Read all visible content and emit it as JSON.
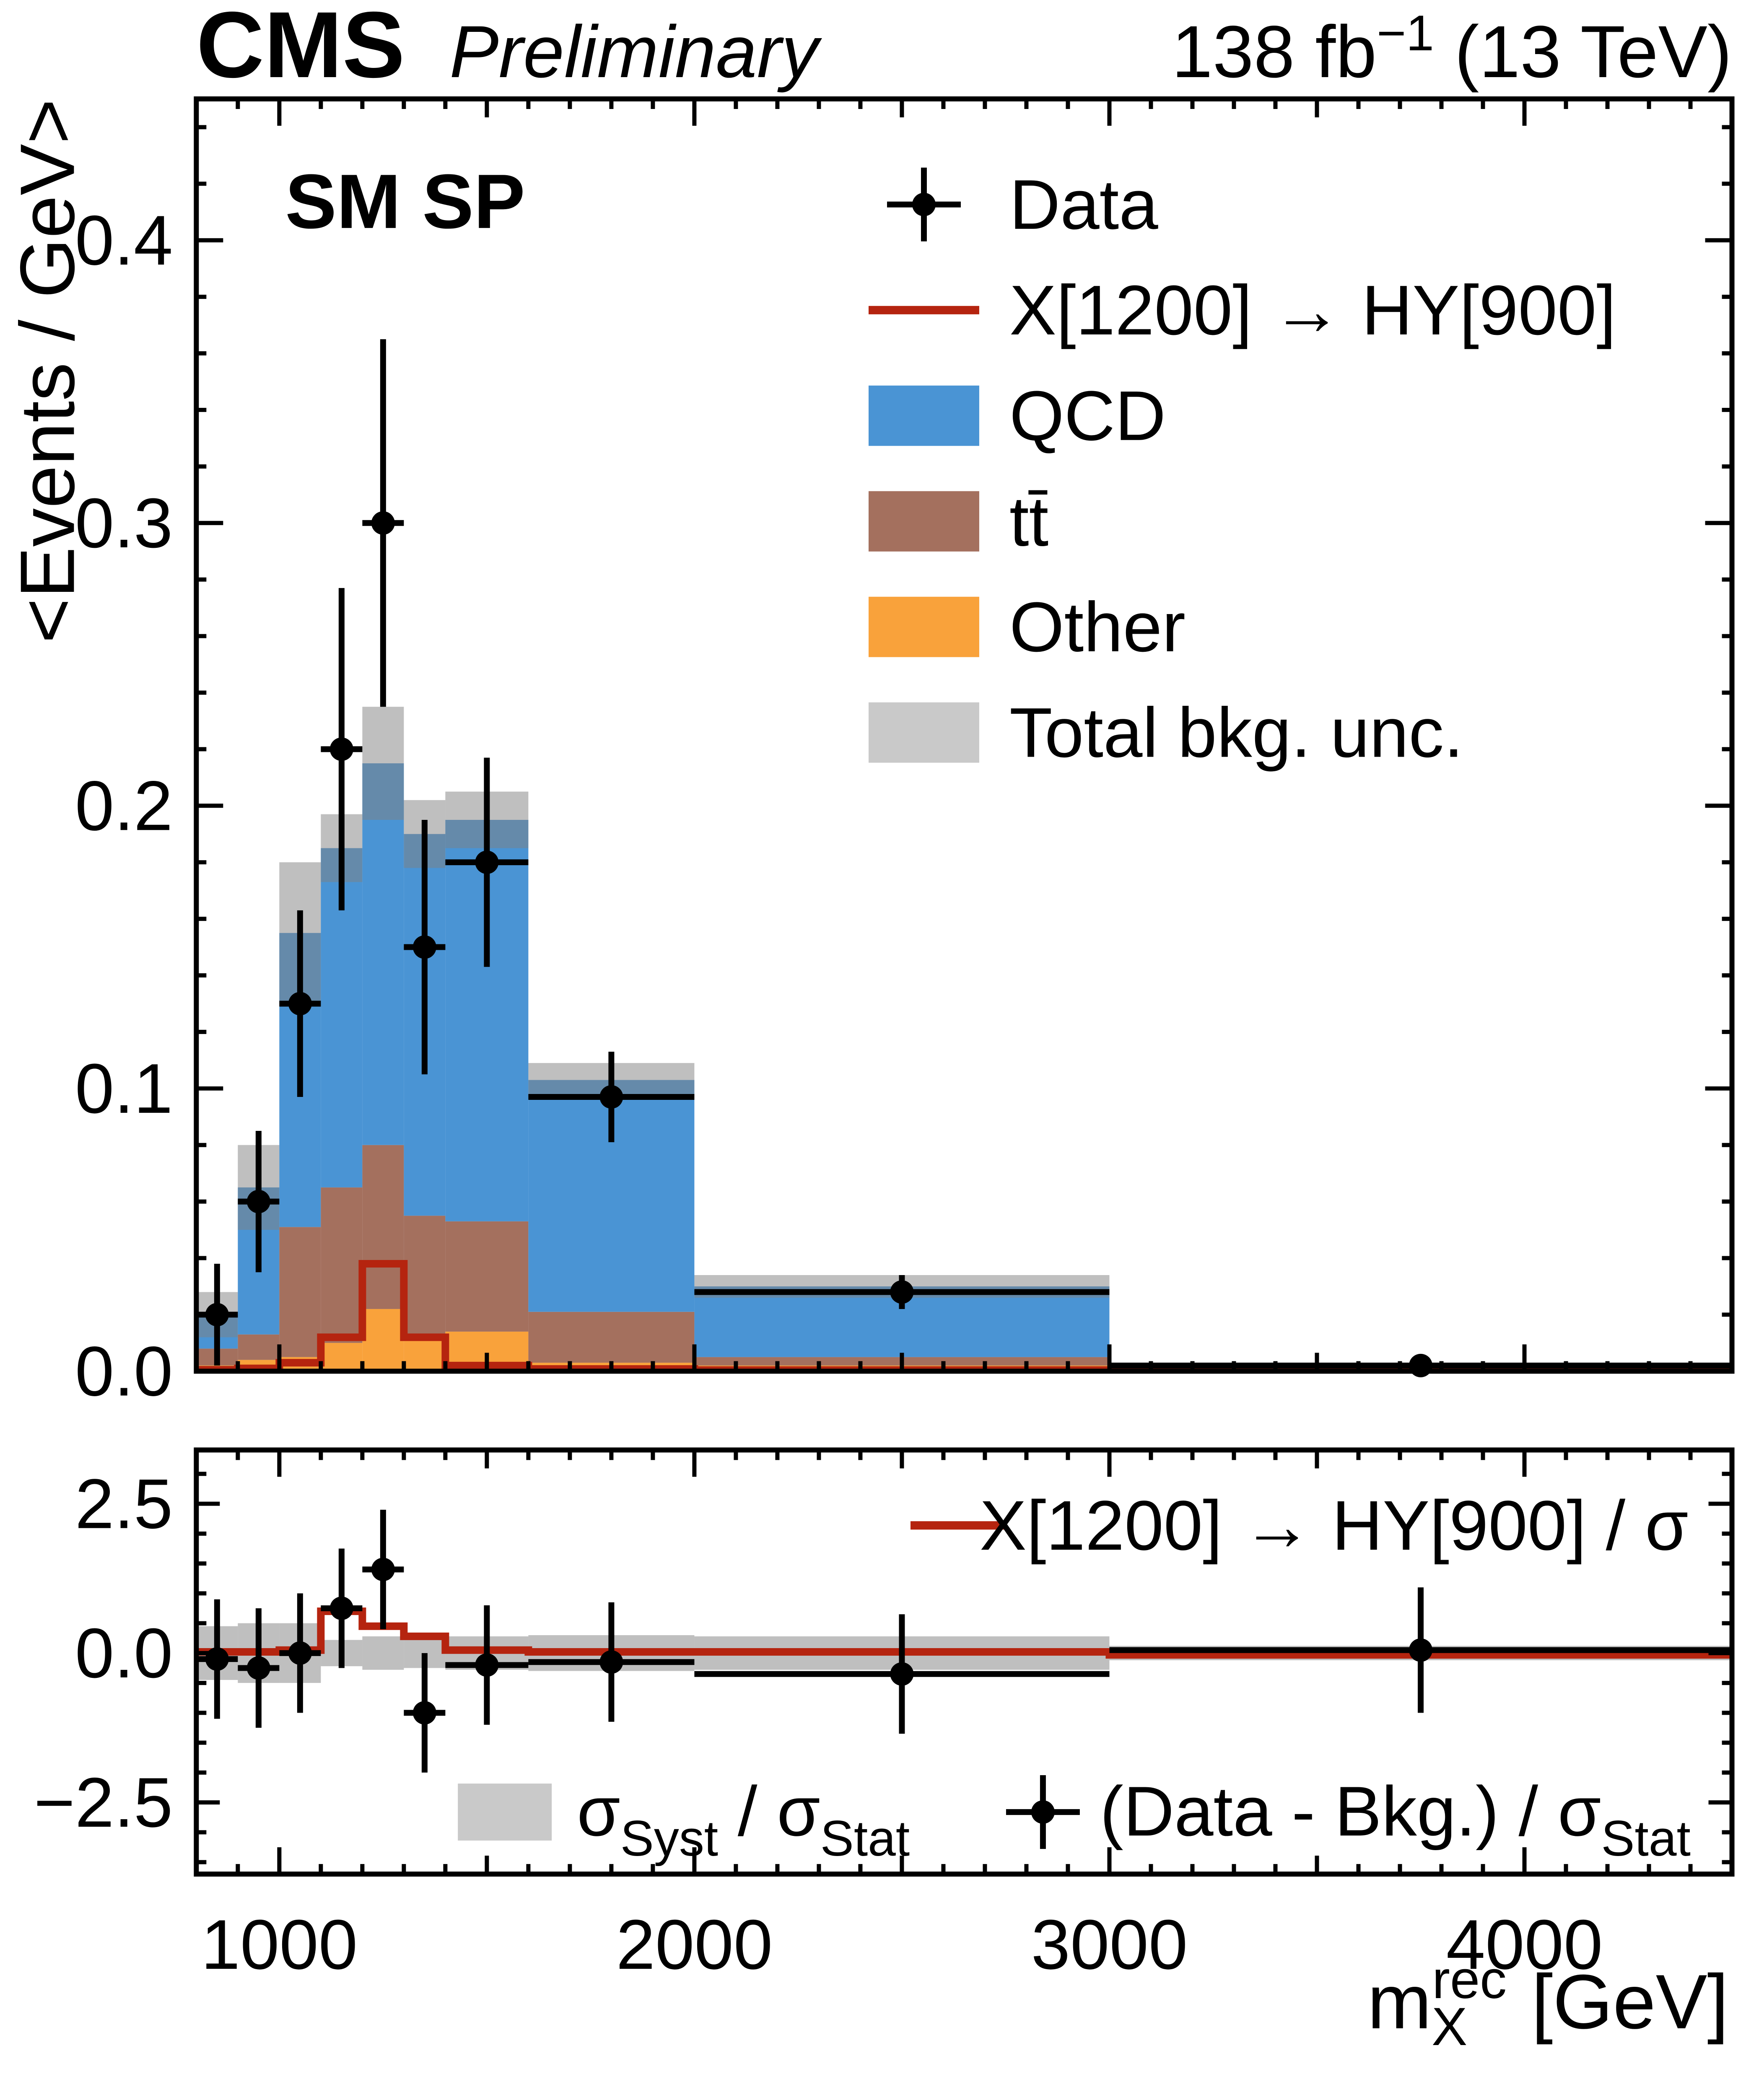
{
  "page": {
    "brand": "CMS",
    "brand_style": "Preliminary",
    "lumi_frag1": "138 fb",
    "lumi_frag2": "−1",
    "lumi_frag3": " (13 TeV)",
    "panel_label": "SM SP"
  },
  "axes": {
    "y_title": "<Events / GeV>",
    "x_title_base": "m",
    "x_title_sub": "X",
    "x_title_sup": "rec",
    "x_title_unit": " [GeV]"
  },
  "legend": {
    "entries": [
      {
        "label": "Data",
        "type": "marker"
      },
      {
        "label": "X[1200] → HY[900]",
        "type": "line",
        "color": "#B5240F"
      },
      {
        "label": "QCD",
        "type": "box",
        "color": "#4A94D4"
      },
      {
        "label": "tt̄",
        "type": "box",
        "color": "#A4705E"
      },
      {
        "label": "Other",
        "type": "box",
        "color": "#F9A23B"
      },
      {
        "label": "Total bkg. unc.",
        "type": "box",
        "color": "#C9C9C9"
      }
    ]
  },
  "ratio_legend": {
    "signal_label": "X[1200] → HY[900] / σ",
    "band_frag1": "σ",
    "band_frag2": "Syst",
    "band_frag3": " / σ",
    "band_frag4": "Stat",
    "points_frag1": "(Data - Bkg.) / σ",
    "points_frag2": "Stat"
  },
  "chart_data": [
    {
      "type": "bar",
      "name": "main-stacked-histogram",
      "stacked": true,
      "title": "SM SP",
      "xlabel": "m_X^rec [GeV]",
      "ylabel": "<Events / GeV>",
      "xlim": [
        800,
        4500
      ],
      "ylim": [
        0,
        0.45
      ],
      "grid": false,
      "legend_position": "upper right",
      "bin_edges": [
        800,
        900,
        1000,
        1100,
        1200,
        1300,
        1400,
        1600,
        2000,
        3000,
        4500
      ],
      "series": [
        {
          "name": "Other",
          "color": "#F9A23B",
          "values": [
            0.002,
            0.004,
            0.005,
            0.01,
            0.022,
            0.011,
            0.014,
            0.003,
            0.002,
            0.0005
          ]
        },
        {
          "name": "tt̄",
          "color": "#A4705E",
          "values": [
            0.006,
            0.009,
            0.046,
            0.055,
            0.058,
            0.044,
            0.039,
            0.018,
            0.003,
            0.0005
          ]
        },
        {
          "name": "QCD",
          "color": "#4A94D4",
          "values": [
            0.012,
            0.052,
            0.104,
            0.12,
            0.135,
            0.135,
            0.142,
            0.082,
            0.025,
            0.001
          ]
        }
      ],
      "total_bkg_unc": [
        0.008,
        0.015,
        0.025,
        0.012,
        0.02,
        0.012,
        0.01,
        0.006,
        0.004,
        0.001
      ],
      "unc_color": "#7F7F7F",
      "unc_opacity": 0.5,
      "signal": {
        "name": "X[1200] → HY[900]",
        "color": "#B5240F",
        "values": [
          0.0005,
          0.001,
          0.003,
          0.012,
          0.038,
          0.012,
          0.002,
          0.0008,
          0.0004,
          0.0002
        ]
      },
      "data": {
        "x": [
          850,
          950,
          1050,
          1150,
          1250,
          1350,
          1500,
          1800,
          2500,
          3750
        ],
        "y": [
          0.02,
          0.06,
          0.13,
          0.22,
          0.3,
          0.15,
          0.18,
          0.097,
          0.028,
          0.002
        ],
        "yerr": [
          0.018,
          0.025,
          0.033,
          0.057,
          0.065,
          0.045,
          0.037,
          0.016,
          0.006,
          0.002
        ],
        "xerr": [
          50,
          50,
          50,
          50,
          50,
          50,
          100,
          200,
          500,
          750
        ]
      },
      "x_ticks": [
        {
          "v": 1000,
          "label": "1000"
        },
        {
          "v": 2000,
          "label": "2000"
        },
        {
          "v": 3000,
          "label": "3000"
        },
        {
          "v": 4000,
          "label": "4000"
        }
      ],
      "y_ticks": [
        {
          "v": 0.0,
          "label": "0.0"
        },
        {
          "v": 0.1,
          "label": "0.1"
        },
        {
          "v": 0.2,
          "label": "0.2"
        },
        {
          "v": 0.3,
          "label": "0.3"
        },
        {
          "v": 0.4,
          "label": "0.4"
        }
      ]
    },
    {
      "type": "scatter",
      "name": "ratio-pull-panel",
      "ylabel": "",
      "ylim": [
        -3.7,
        3.4
      ],
      "band_halfwidth": [
        0.45,
        0.5,
        0.5,
        0.22,
        0.28,
        0.25,
        0.28,
        0.3,
        0.28,
        0.12
      ],
      "signal_over_sigma": [
        0.02,
        0.02,
        0.05,
        0.7,
        0.45,
        0.28,
        0.05,
        0.02,
        0.02,
        -0.03
      ],
      "points": {
        "x": [
          850,
          950,
          1050,
          1150,
          1250,
          1350,
          1500,
          1800,
          2500,
          3750
        ],
        "y": [
          -0.1,
          -0.25,
          0.0,
          0.75,
          1.4,
          -1.0,
          -0.2,
          -0.15,
          -0.35,
          0.05
        ],
        "yerr": [
          1.0,
          1.0,
          1.0,
          1.0,
          1.0,
          1.0,
          1.0,
          1.0,
          1.0,
          1.05
        ],
        "xerr": [
          50,
          50,
          50,
          50,
          50,
          50,
          100,
          200,
          500,
          750
        ]
      },
      "y_ticks": [
        {
          "v": 2.5,
          "label": "2.5"
        },
        {
          "v": 0.0,
          "label": "0.0"
        },
        {
          "v": -2.5,
          "label": "−2.5"
        }
      ]
    }
  ]
}
